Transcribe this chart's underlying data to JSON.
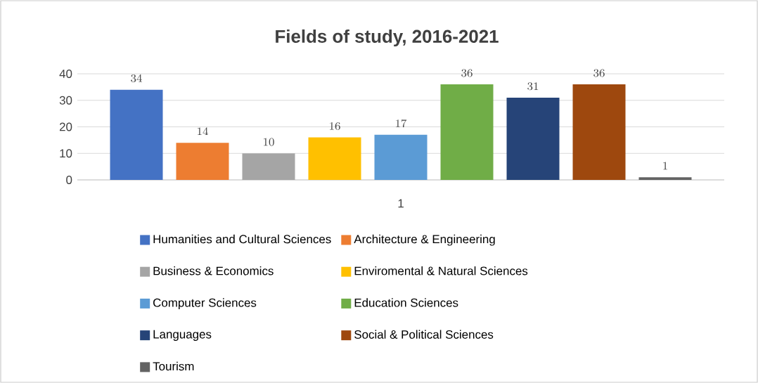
{
  "chart_data": {
    "type": "bar",
    "title": "Fields of study, 2016-2021",
    "categories": [
      "1"
    ],
    "series": [
      {
        "name": "Humanities and Cultural Sciences",
        "color": "#4472c4",
        "values": [
          34
        ]
      },
      {
        "name": "Architecture & Engineering",
        "color": "#ed7d31",
        "values": [
          14
        ]
      },
      {
        "name": "Business & Economics",
        "color": "#a5a5a5",
        "values": [
          10
        ]
      },
      {
        "name": "Enviromental & Natural Sciences",
        "color": "#ffc000",
        "values": [
          16
        ]
      },
      {
        "name": "Computer Sciences",
        "color": "#5b9bd5",
        "values": [
          17
        ]
      },
      {
        "name": "Education Sciences",
        "color": "#70ad47",
        "values": [
          36
        ]
      },
      {
        "name": "Languages",
        "color": "#264478",
        "values": [
          31
        ]
      },
      {
        "name": "Social & Political Sciences",
        "color": "#9e480e",
        "values": [
          36
        ]
      },
      {
        "name": "Tourism",
        "color": "#636363",
        "values": [
          1
        ]
      }
    ],
    "ylim": [
      0,
      40
    ],
    "yticks": [
      0,
      10,
      20,
      30,
      40
    ],
    "grid": "y",
    "legend": "bottom",
    "data_labels": true
  }
}
